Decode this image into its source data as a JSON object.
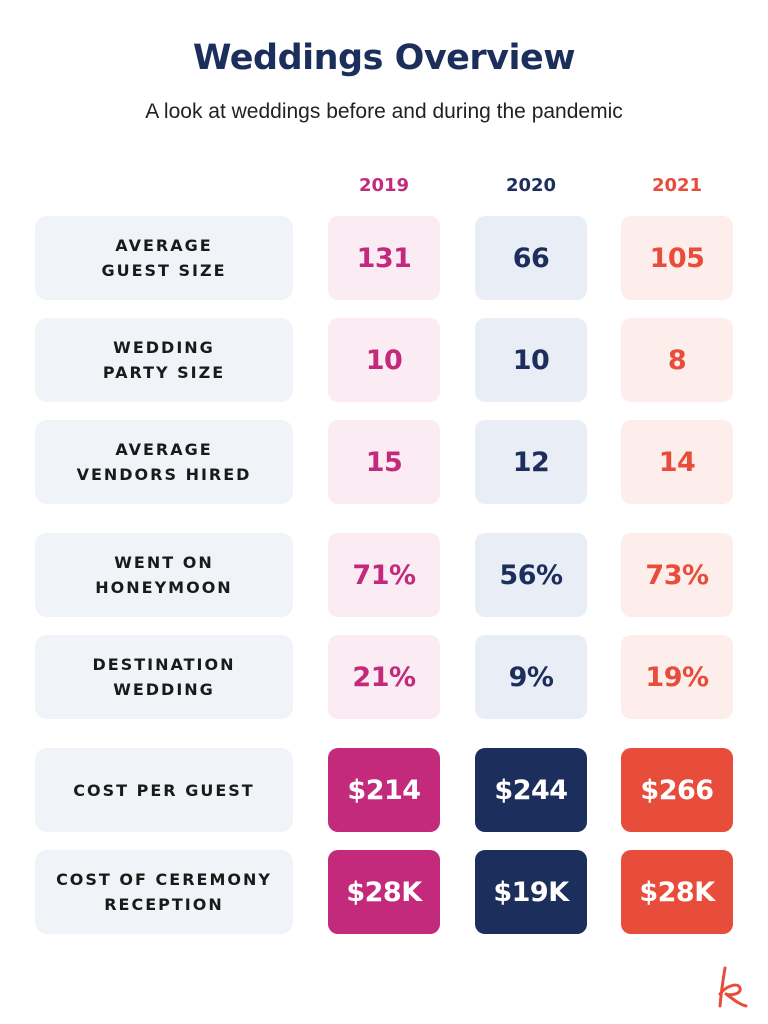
{
  "title": "Weddings Overview",
  "subtitle": "A look at weddings before and during the pandemic",
  "colors": {
    "y2019": "#c42a7b",
    "y2020": "#1c2f5c",
    "y2021": "#e84c3a",
    "light2019": "#fbecf3",
    "light2020": "#e9eef6",
    "light2021": "#fdeeeb",
    "label_bg": "#f0f3f7",
    "logo": "#e84c3a"
  },
  "logo_icon": "kitchen-k-logo",
  "chart_data": {
    "type": "table",
    "columns": [
      "2019",
      "2020",
      "2021"
    ],
    "rows": [
      {
        "label": "AVERAGE\nGUEST SIZE",
        "values": [
          "131",
          "66",
          "105"
        ],
        "style": "light"
      },
      {
        "label": "WEDDING\nPARTY SIZE",
        "values": [
          "10",
          "10",
          "8"
        ],
        "style": "light"
      },
      {
        "label": "AVERAGE\nVENDORS HIRED",
        "values": [
          "15",
          "12",
          "14"
        ],
        "style": "light"
      },
      {
        "label": "WENT ON\nHONEYMOON",
        "values": [
          "71%",
          "56%",
          "73%"
        ],
        "style": "light"
      },
      {
        "label": "DESTINATION\nWEDDING",
        "values": [
          "21%",
          "9%",
          "19%"
        ],
        "style": "light"
      },
      {
        "label": "COST PER GUEST",
        "values": [
          "$214",
          "$244",
          "$266"
        ],
        "style": "solid"
      },
      {
        "label": "COST OF CEREMONY\nRECEPTION",
        "values": [
          "$28K",
          "$19K",
          "$28K"
        ],
        "style": "solid"
      }
    ]
  }
}
